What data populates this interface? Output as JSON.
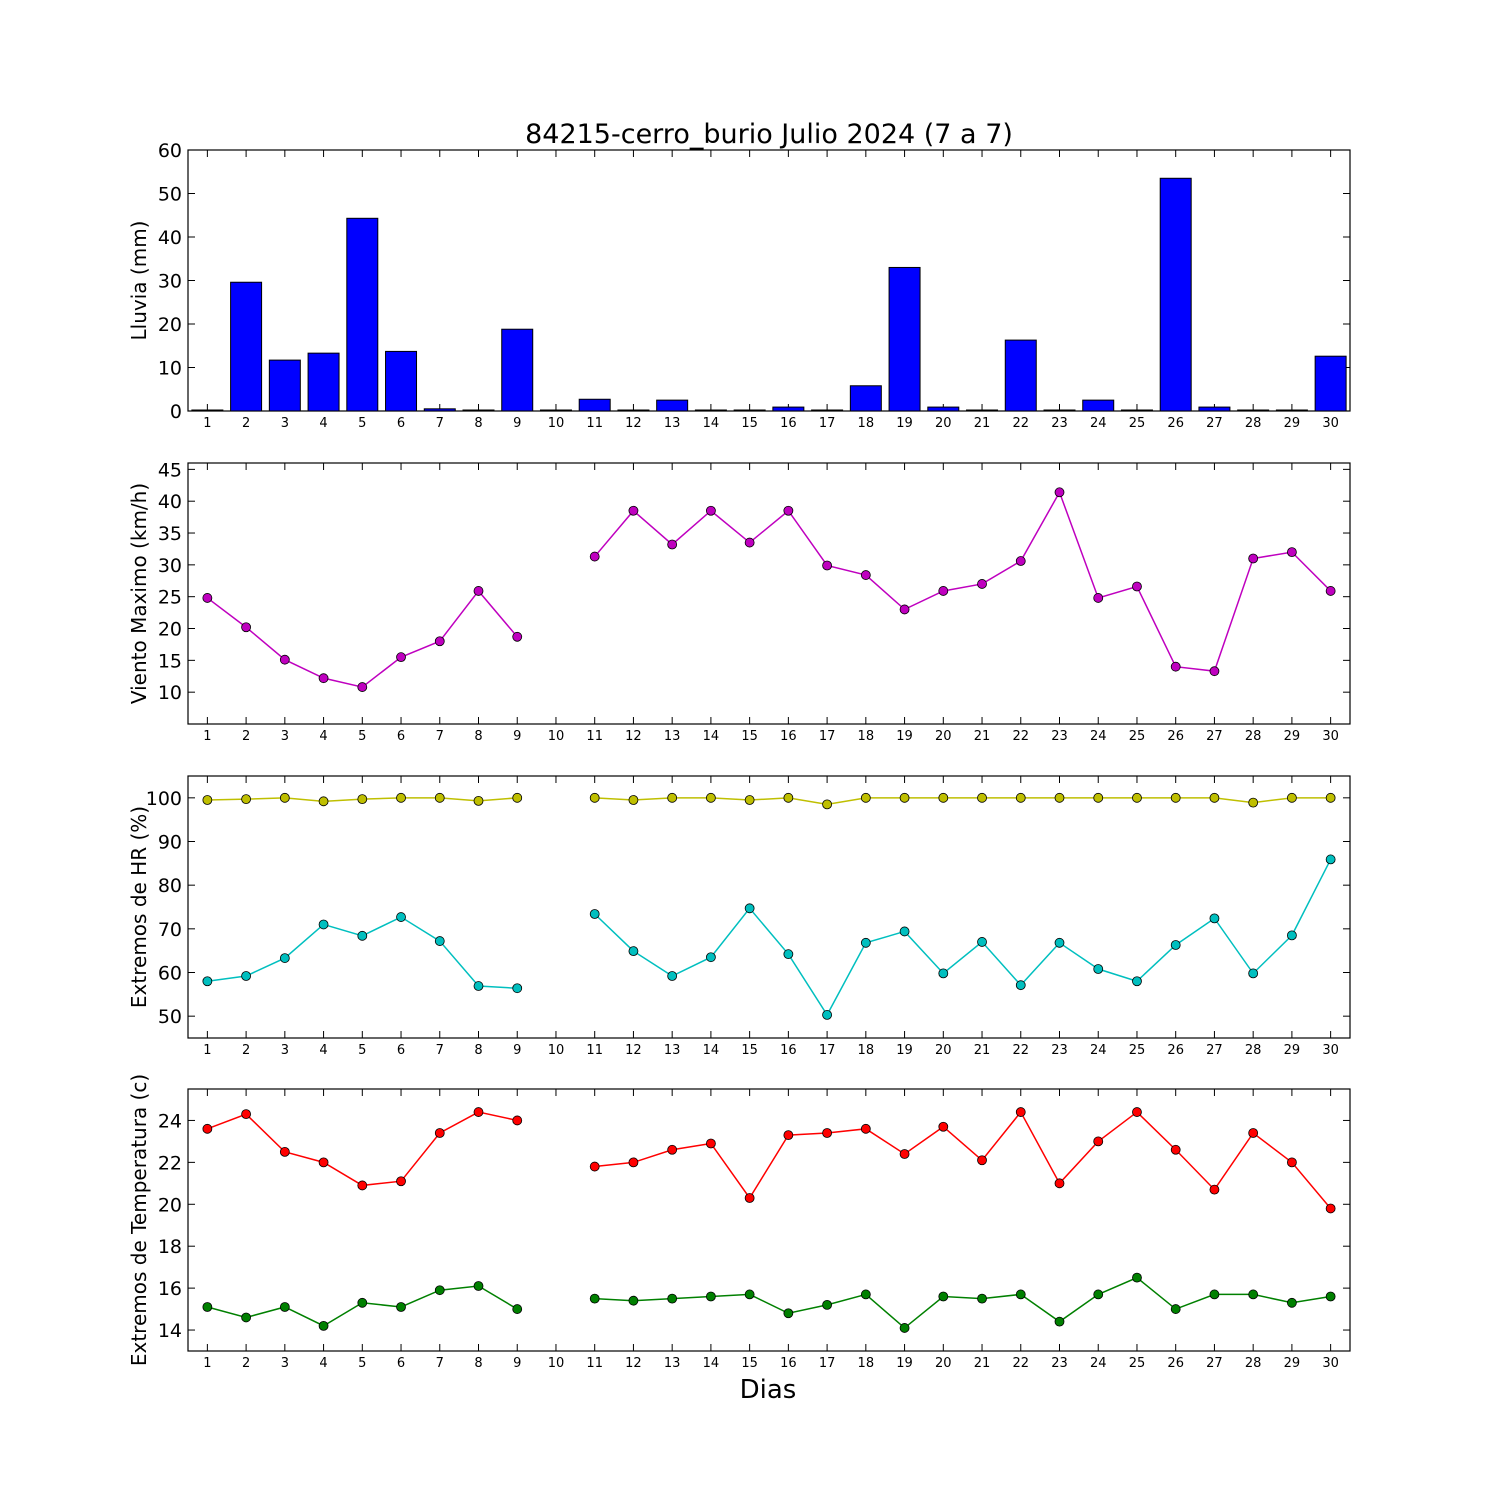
{
  "figure": {
    "title": "84215-cerro_burio Julio 2024  (7 a 7)",
    "xlabel": "Dias"
  },
  "chart_data": [
    {
      "type": "bar",
      "ylabel": "Lluvia (mm)",
      "ylim": [
        0,
        60
      ],
      "yticks": [
        0,
        10,
        20,
        30,
        40,
        50,
        60
      ],
      "categories": [
        "1",
        "2",
        "3",
        "4",
        "5",
        "6",
        "7",
        "8",
        "9",
        "10",
        "11",
        "12",
        "13",
        "14",
        "15",
        "16",
        "17",
        "18",
        "19",
        "20",
        "21",
        "22",
        "23",
        "24",
        "25",
        "26",
        "27",
        "28",
        "29",
        "30"
      ],
      "grid": false,
      "series": [
        {
          "color": "#0000ff",
          "values": [
            0.2,
            29.6,
            11.7,
            13.3,
            44.3,
            13.7,
            0.5,
            0,
            18.8,
            0,
            2.7,
            0,
            2.5,
            0.2,
            0,
            0.9,
            0,
            5.8,
            33.0,
            0.9,
            0,
            16.3,
            0,
            2.5,
            0,
            53.5,
            0.9,
            0,
            0.2,
            12.6
          ]
        }
      ]
    },
    {
      "type": "line",
      "ylabel": "Viento Maximo (km/h)",
      "ylim": [
        5,
        46
      ],
      "yticks": [
        10,
        15,
        20,
        25,
        30,
        35,
        40,
        45
      ],
      "x": [
        1,
        2,
        3,
        4,
        5,
        6,
        7,
        8,
        9,
        10,
        11,
        12,
        13,
        14,
        15,
        16,
        17,
        18,
        19,
        20,
        21,
        22,
        23,
        24,
        25,
        26,
        27,
        28,
        29,
        30
      ],
      "grid": false,
      "series": [
        {
          "color": "#bf00bf",
          "values": [
            24.8,
            20.2,
            15.1,
            12.2,
            10.8,
            15.5,
            18.0,
            25.9,
            18.7,
            null,
            31.3,
            38.5,
            33.2,
            38.5,
            33.5,
            38.5,
            29.9,
            28.4,
            23.0,
            25.9,
            27.0,
            30.6,
            41.4,
            24.8,
            26.6,
            14.0,
            13.3,
            31.0,
            32.0,
            25.9
          ]
        }
      ]
    },
    {
      "type": "line",
      "ylabel": "Extremos de HR (%)",
      "ylim": [
        45,
        105
      ],
      "yticks": [
        50,
        60,
        70,
        80,
        90,
        100
      ],
      "x": [
        1,
        2,
        3,
        4,
        5,
        6,
        7,
        8,
        9,
        10,
        11,
        12,
        13,
        14,
        15,
        16,
        17,
        18,
        19,
        20,
        21,
        22,
        23,
        24,
        25,
        26,
        27,
        28,
        29,
        30
      ],
      "grid": false,
      "series": [
        {
          "color": "#bfbf00",
          "values": [
            99.5,
            99.7,
            100,
            99.2,
            99.7,
            100,
            100,
            99.3,
            100,
            null,
            100,
            99.5,
            100,
            100,
            99.5,
            100,
            98.5,
            100,
            100,
            100,
            100,
            100,
            100,
            100,
            100,
            100,
            100,
            98.9,
            100,
            100
          ]
        },
        {
          "color": "#00bfbf",
          "values": [
            58.0,
            59.2,
            63.3,
            71.0,
            68.4,
            72.7,
            67.2,
            56.9,
            56.4,
            null,
            73.4,
            64.9,
            59.2,
            63.5,
            74.7,
            64.2,
            50.3,
            66.8,
            69.4,
            59.8,
            67.0,
            57.1,
            66.8,
            60.8,
            58.0,
            66.3,
            72.4,
            59.8,
            68.5,
            85.9
          ]
        }
      ]
    },
    {
      "type": "line",
      "ylabel": "Extremos de Temperatura (c)",
      "ylim": [
        13,
        25.5
      ],
      "yticks": [
        14,
        16,
        18,
        20,
        22,
        24
      ],
      "x": [
        1,
        2,
        3,
        4,
        5,
        6,
        7,
        8,
        9,
        10,
        11,
        12,
        13,
        14,
        15,
        16,
        17,
        18,
        19,
        20,
        21,
        22,
        23,
        24,
        25,
        26,
        27,
        28,
        29,
        30
      ],
      "grid": false,
      "series": [
        {
          "color": "#ff0000",
          "values": [
            23.6,
            24.3,
            22.5,
            22.0,
            20.9,
            21.1,
            23.4,
            24.4,
            24.0,
            null,
            21.8,
            22.0,
            22.6,
            22.9,
            20.3,
            23.3,
            23.4,
            23.6,
            22.4,
            23.7,
            22.1,
            24.4,
            21.0,
            23.0,
            24.4,
            22.6,
            20.7,
            23.4,
            22.0,
            19.8
          ]
        },
        {
          "color": "#008000",
          "values": [
            15.1,
            14.6,
            15.1,
            14.2,
            15.3,
            15.1,
            15.9,
            16.1,
            15.0,
            null,
            15.5,
            15.4,
            15.5,
            15.6,
            15.7,
            14.8,
            15.2,
            15.7,
            14.1,
            15.6,
            15.5,
            15.7,
            14.4,
            15.7,
            16.5,
            15.0,
            15.7,
            15.7,
            15.3,
            15.6
          ]
        }
      ]
    }
  ]
}
